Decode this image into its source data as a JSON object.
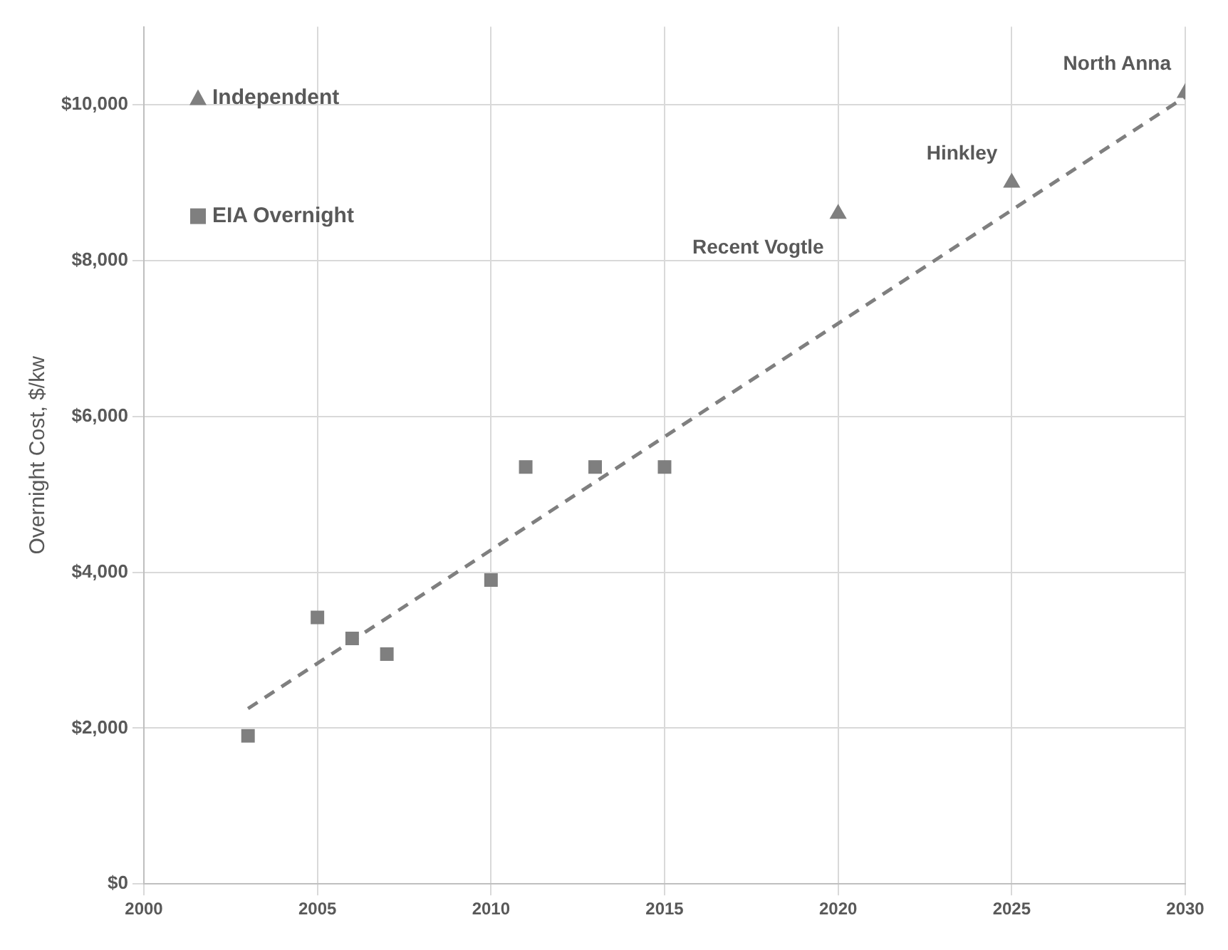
{
  "chart_data": {
    "type": "scatter",
    "ylabel": "Overnight Cost, $/kw",
    "xlim": [
      2000,
      2030
    ],
    "xticks": [
      2000,
      2005,
      2010,
      2015,
      2020,
      2025,
      2030
    ],
    "ylim": [
      0,
      11000
    ],
    "yticks": [
      {
        "value": 0,
        "label": "$0"
      },
      {
        "value": 2000,
        "label": "$2,000"
      },
      {
        "value": 4000,
        "label": "$4,000"
      },
      {
        "value": 6000,
        "label": "$6,000"
      },
      {
        "value": 8000,
        "label": "$8,000"
      },
      {
        "value": 10000,
        "label": "$10,000"
      }
    ],
    "grid": true,
    "legend": "top left",
    "series": [
      {
        "name": "Independent",
        "color": "#7f7f7f",
        "marker": "triangle",
        "x": [
          2020,
          2025,
          2030
        ],
        "values": [
          8600,
          9000,
          10150
        ]
      },
      {
        "name": "EIA Overnight",
        "color": "#7f7f7f",
        "marker": "square",
        "x": [
          2003,
          2005,
          2006,
          2007,
          2010,
          2011,
          2013,
          2015
        ],
        "values": [
          1900,
          3420,
          3150,
          2950,
          3900,
          5350,
          5350,
          5350
        ]
      },
      {
        "type": "line",
        "color": "#7f7f7f",
        "line_style": "dashed",
        "marker": "none",
        "x": [
          2003,
          2030
        ],
        "values": [
          2250,
          10100
        ]
      }
    ],
    "annotations": [
      {
        "text": "Recent Vogtle",
        "x": 2020,
        "y": 8600
      },
      {
        "text": "Hinkley",
        "x": 2025,
        "y": 9000
      },
      {
        "text": "North Anna",
        "x": 2030,
        "y": 10150
      }
    ]
  }
}
